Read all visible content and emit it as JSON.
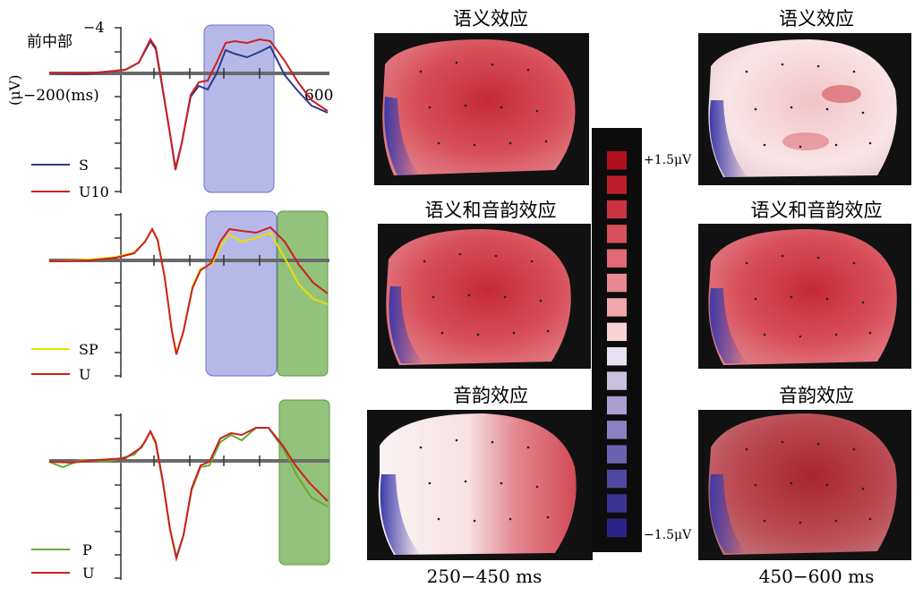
{
  "erp": {
    "region_label": "前中部",
    "unit_label": "(μV)",
    "y_tick_label": "−4",
    "x_start_label": "−200(ms)",
    "x_end_label": "600",
    "panels": [
      {
        "legend": [
          {
            "label": "S",
            "color": "#2b3a8c"
          },
          {
            "label": "U10",
            "color": "#cc1f1f"
          }
        ]
      },
      {
        "legend": [
          {
            "label": "SP",
            "color": "#e8e000"
          },
          {
            "label": "U",
            "color": "#cc1f1f"
          }
        ]
      },
      {
        "legend": [
          {
            "label": "P",
            "color": "#6aa832"
          },
          {
            "label": "U",
            "color": "#cc1f1f"
          }
        ]
      }
    ]
  },
  "topo": {
    "titles_left": [
      "语义效应",
      "语义和音韵效应",
      "音韵效应"
    ],
    "titles_right": [
      "语义效应",
      "语义和音韵效应",
      "音韵效应"
    ],
    "time_left": "250−450 ms",
    "time_right": "450−600 ms"
  },
  "scale": {
    "max_label": "+1.5μV",
    "min_label": "−1.5μV",
    "colors": [
      "#b0101e",
      "#bf1f2b",
      "#cc3340",
      "#d8505c",
      "#e06b76",
      "#e88891",
      "#f0a8ae",
      "#f8d2d4",
      "#e8e2f0",
      "#cbc0e0",
      "#aa9fd0",
      "#8b80c0",
      "#6c62b0",
      "#5048a0",
      "#3c3494",
      "#2c2488"
    ]
  }
}
